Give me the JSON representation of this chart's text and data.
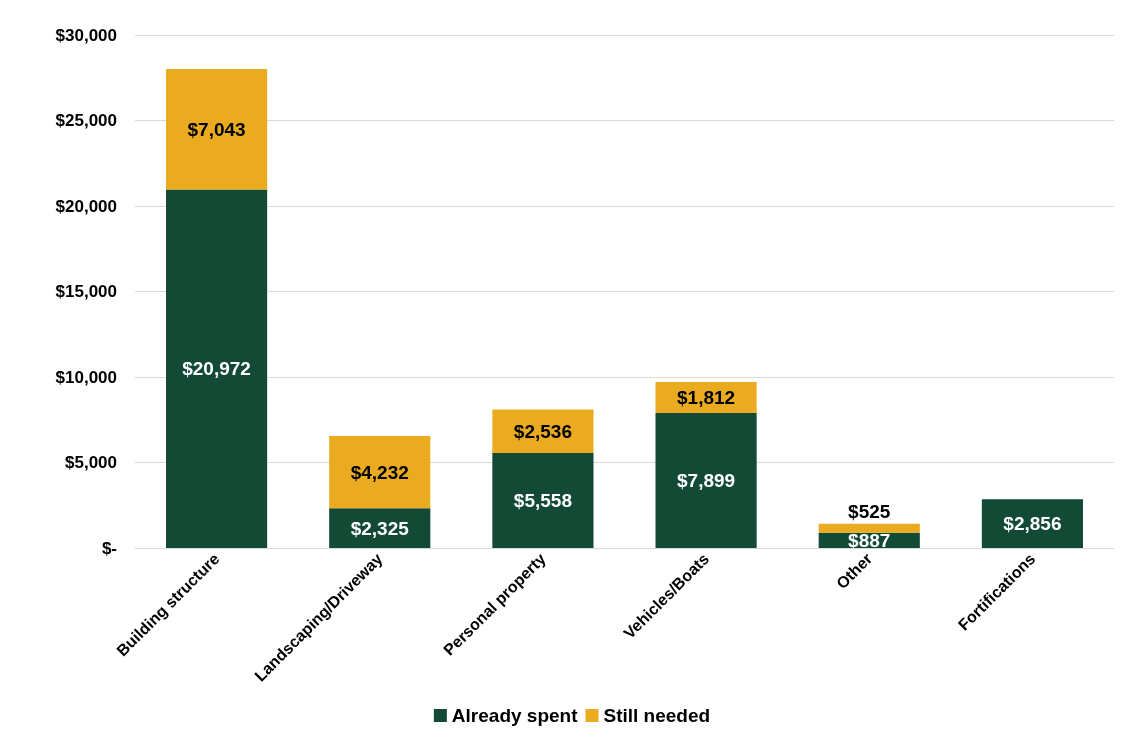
{
  "chart_data": {
    "type": "bar",
    "stacked": true,
    "categories": [
      "Building structure",
      "Landscaping/Driveway",
      "Personal property",
      "Vehicles/Boats",
      "Other",
      "Fortifications"
    ],
    "series": [
      {
        "name": "Already spent",
        "color": "#134a36",
        "values": [
          20972,
          2325,
          5558,
          7899,
          887,
          2856
        ],
        "value_labels": [
          "$20,972",
          "$2,325",
          "$5,558",
          "$7,899",
          "$887",
          "$2,856"
        ]
      },
      {
        "name": "Still needed",
        "color": "#eaab20",
        "values": [
          7043,
          4232,
          2536,
          1812,
          525,
          null
        ],
        "value_labels": [
          "$7,043",
          "$4,232",
          "$2,536",
          "$1,812",
          "$525",
          null
        ]
      }
    ],
    "ylim": [
      0,
      30000
    ],
    "yticks": [
      {
        "value": 0,
        "label": "$-"
      },
      {
        "value": 5000,
        "label": "$5,000"
      },
      {
        "value": 10000,
        "label": "$10,000"
      },
      {
        "value": 15000,
        "label": "$15,000"
      },
      {
        "value": 20000,
        "label": "$20,000"
      },
      {
        "value": 25000,
        "label": "$25,000"
      },
      {
        "value": 30000,
        "label": "$30,000"
      }
    ],
    "grid": "y",
    "legend": "bottom"
  }
}
